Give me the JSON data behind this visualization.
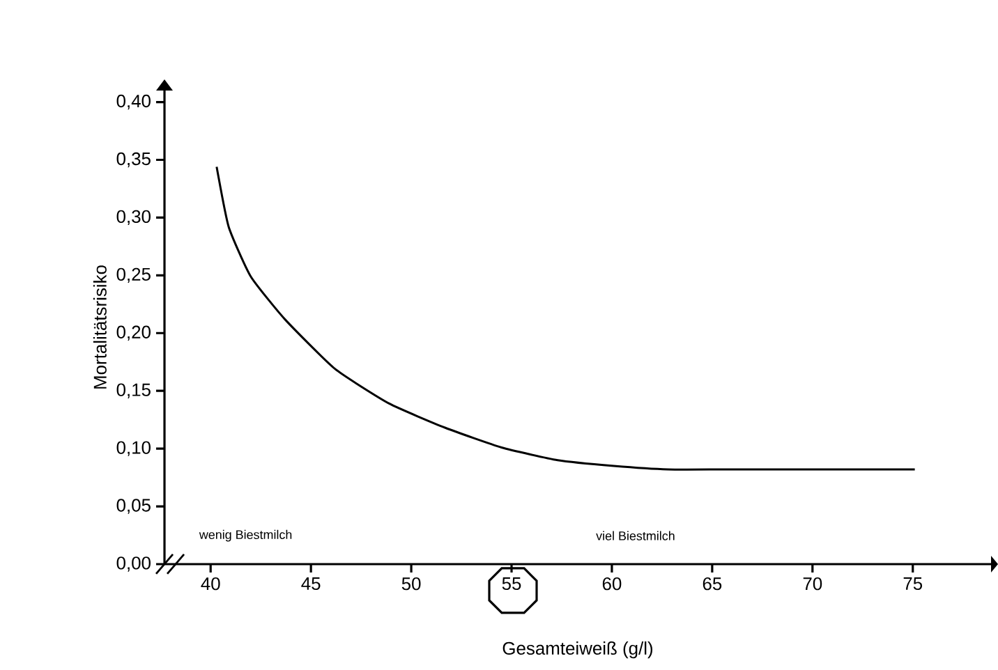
{
  "chart_data": {
    "type": "line",
    "xlabel": "Gesamteiweiß (g/l)",
    "ylabel": "Mortalitätsrisiko",
    "x": [
      40.3,
      40.9,
      42.0,
      43.7,
      46.2,
      48.9,
      51.7,
      54.5,
      57.3,
      60.1,
      62.8,
      66,
      70,
      75.1
    ],
    "series": [
      {
        "color": "#000000",
        "values": [
          0.344,
          0.292,
          0.249,
          0.212,
          0.169,
          0.139,
          0.118,
          0.101,
          0.09,
          0.085,
          0.082,
          0.082,
          0.082,
          0.082
        ]
      }
    ],
    "xlim": [
      37.7,
      78.9
    ],
    "ylim": [
      0,
      0.41
    ],
    "xticks": [
      40,
      45,
      50,
      55,
      60,
      65,
      70,
      75
    ],
    "yticks": [
      {
        "value": 0,
        "label": "0,00"
      },
      {
        "value": 0.05,
        "label": "0,05"
      },
      {
        "value": 0.1,
        "label": "0,10"
      },
      {
        "value": 0.15,
        "label": "0,15"
      },
      {
        "value": 0.2,
        "label": "0,20"
      },
      {
        "value": 0.25,
        "label": "0,25"
      },
      {
        "value": 0.3,
        "label": "0,30"
      },
      {
        "value": 0.35,
        "label": "0,35"
      },
      {
        "value": 0.4,
        "label": "0,40"
      }
    ],
    "annotations": [
      "wenig Biestmilch",
      "viel Biestmilch"
    ],
    "grid": false,
    "marker": "none",
    "line_style": "solid"
  }
}
